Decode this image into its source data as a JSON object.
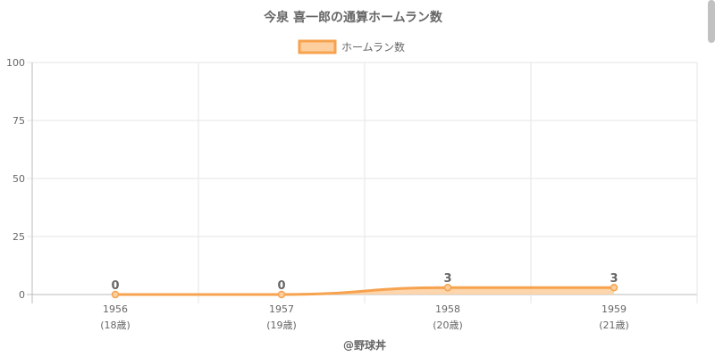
{
  "chart_data": {
    "type": "area",
    "title": "今泉 喜一郎の通算ホームラン数",
    "categories": [
      "1956",
      "1957",
      "1958",
      "1959"
    ],
    "ages": [
      "(18歳)",
      "(19歳)",
      "(20歳)",
      "(21歳)"
    ],
    "series": [
      {
        "name": "ホームラン数",
        "values": [
          0,
          0,
          3,
          3
        ],
        "data_labels": [
          "0",
          "0",
          "3",
          "3"
        ]
      }
    ],
    "ylim": [
      0,
      100
    ],
    "yticks": [
      "0",
      "25",
      "50",
      "75",
      "100"
    ],
    "grid": true,
    "legend": "top-center",
    "footer": "@野球丼"
  },
  "colors": {
    "line": "#f6a24e",
    "fill": "#fdcf9f",
    "grid": "#e6e6e6",
    "axis": "#bbbbbb",
    "text": "#666666"
  }
}
